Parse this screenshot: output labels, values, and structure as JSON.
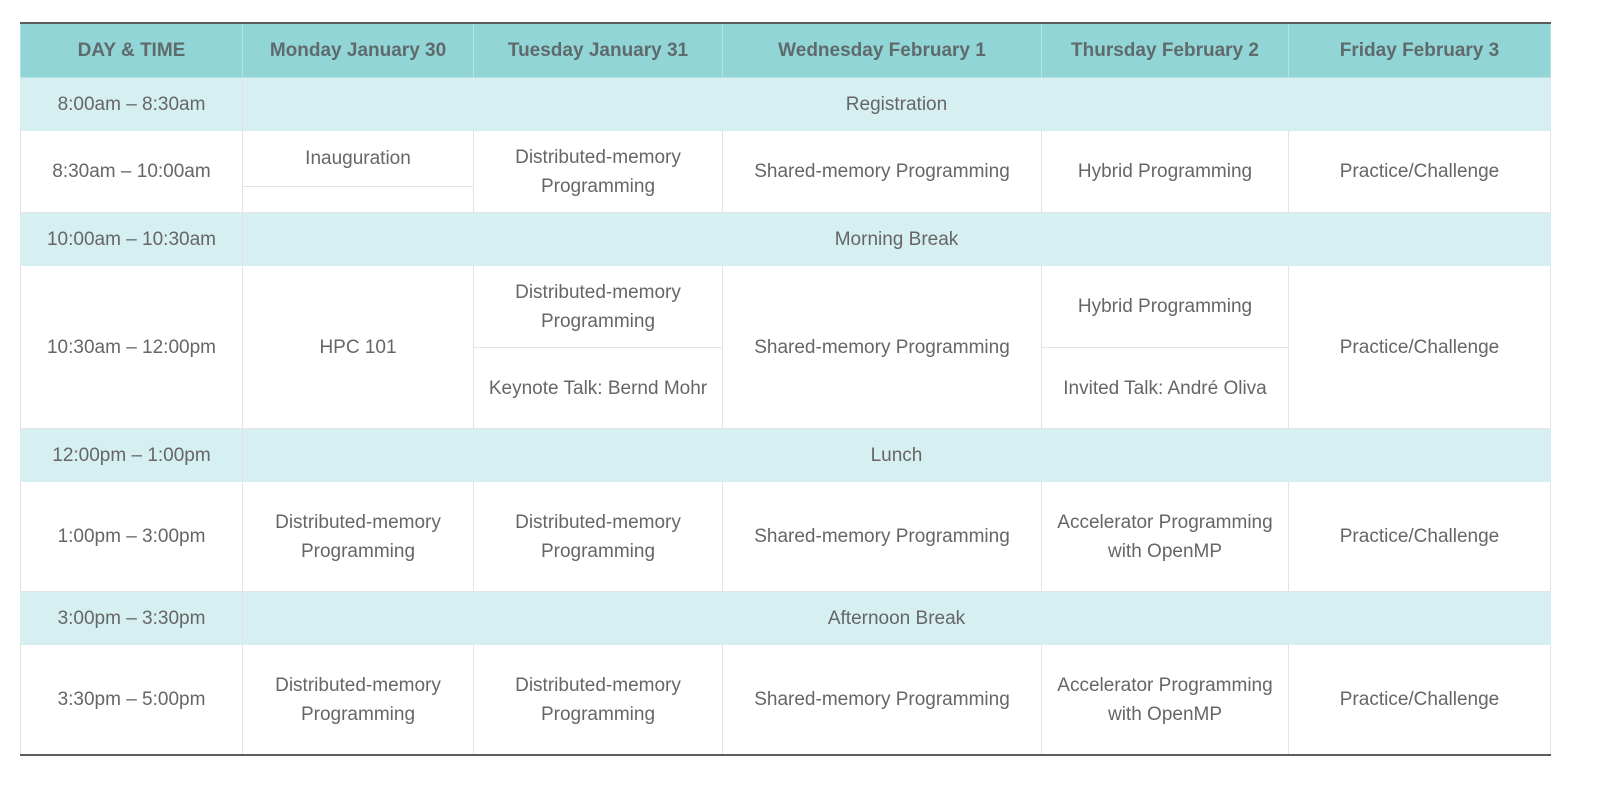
{
  "header": {
    "time_col": "DAY & TIME",
    "days": [
      "Monday January 30",
      "Tuesday January 31",
      "Wednesday February 1",
      "Thursday February 2",
      "Friday February 3"
    ]
  },
  "rows": {
    "r0800": {
      "time": "8:00am – 8:30am",
      "label": "Registration"
    },
    "r0830": {
      "time": "8:30am – 10:00am",
      "mon": "Inauguration",
      "tue": "Distributed-memory Programming",
      "wed": "Shared-memory Programming",
      "thu": "Hybrid Programming",
      "fri": "Practice/Challenge"
    },
    "r1000": {
      "time": "10:00am – 10:30am",
      "label": "Morning Break"
    },
    "r1030": {
      "time": "10:30am – 12:00pm",
      "mon": "HPC 101",
      "tue_a": "Distributed-memory Programming",
      "tue_b": "Keynote Talk: Bernd Mohr",
      "wed": "Shared-memory Programming",
      "thu_a": "Hybrid Programming",
      "thu_b": "Invited Talk: André Oliva",
      "fri": "Practice/Challenge"
    },
    "r1200": {
      "time": "12:00pm – 1:00pm",
      "label": "Lunch"
    },
    "r1300": {
      "time": "1:00pm – 3:00pm",
      "mon": "Distributed-memory Programming",
      "tue": "Distributed-memory Programming",
      "wed": "Shared-memory Programming",
      "thu": "Accelerator Programming with OpenMP",
      "fri": "Practice/Challenge"
    },
    "r1500": {
      "time": "3:00pm – 3:30pm",
      "label": "Afternoon Break"
    },
    "r1530": {
      "time": "3:30pm – 5:00pm",
      "mon": "Distributed-memory Programming",
      "tue": "Distributed-memory Programming",
      "wed": "Shared-memory Programming",
      "thu": "Accelerator Programming with OpenMP",
      "fri": "Practice/Challenge"
    }
  },
  "colors": {
    "header_bg": "#92d5d7",
    "break_bg": "#d6eff0",
    "text": "#666666"
  }
}
